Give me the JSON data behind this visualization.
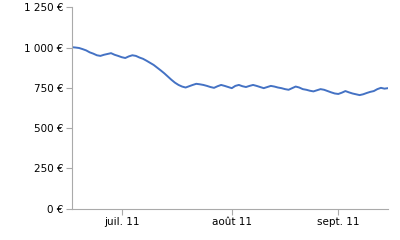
{
  "title": "",
  "ylabel": "",
  "xlabel": "",
  "ylim": [
    0,
    1250
  ],
  "yticks": [
    0,
    250,
    500,
    750,
    1000,
    1250
  ],
  "ytick_labels": [
    "0 €",
    "250 €",
    "500 €",
    "750 €",
    "1 000 €",
    "1 250 €"
  ],
  "line_color": "#4472C4",
  "line_width": 1.4,
  "background_color": "#ffffff",
  "xtick_labels": [
    "juil. 11",
    "août 11",
    "sept. 11"
  ],
  "spine_color": "#AAAAAA",
  "values": [
    1002,
    1000,
    997,
    990,
    982,
    970,
    962,
    952,
    948,
    955,
    960,
    965,
    955,
    948,
    940,
    935,
    945,
    952,
    948,
    938,
    930,
    918,
    905,
    892,
    875,
    858,
    840,
    820,
    800,
    782,
    768,
    758,
    752,
    760,
    768,
    775,
    772,
    768,
    762,
    755,
    750,
    760,
    768,
    762,
    755,
    748,
    762,
    768,
    760,
    755,
    762,
    768,
    762,
    755,
    748,
    755,
    762,
    758,
    752,
    748,
    742,
    738,
    748,
    758,
    752,
    742,
    738,
    732,
    728,
    735,
    742,
    738,
    730,
    722,
    715,
    712,
    720,
    730,
    722,
    715,
    710,
    705,
    710,
    718,
    725,
    730,
    742,
    750,
    745,
    748
  ]
}
